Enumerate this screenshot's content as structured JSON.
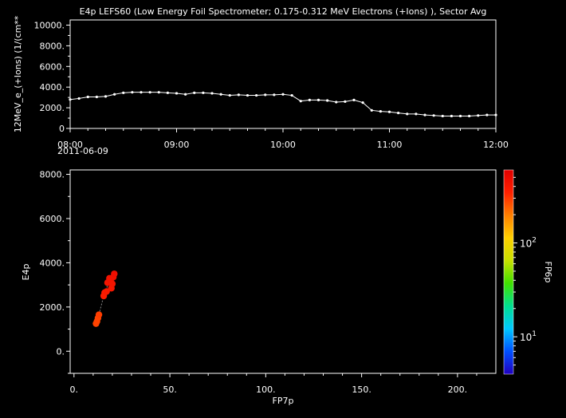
{
  "chart_data": [
    {
      "type": "line",
      "title": "E4p LEFS60 (Low Energy Foil Spectrometer; 0.175-0.312 MeV Electrons (+Ions) ), Sector Avg",
      "ylabel": "12MeV_e_(+Ions) (1/(cm**",
      "xlabel": "",
      "x_start_label": "08:00",
      "date_label": "2011-06-09",
      "xlim": [
        "08:00",
        "12:00"
      ],
      "ylim": [
        0,
        10500
      ],
      "x_ticks": [
        "08:00",
        "09:00",
        "10:00",
        "11:00",
        "12:00"
      ],
      "y_ticks": [
        "0",
        "2000.",
        "4000.",
        "6000.",
        "8000.",
        "10000."
      ],
      "grid": false,
      "line_color": "#ffffff",
      "series": [
        {
          "x": [
            "08:00",
            "08:05",
            "08:10",
            "08:15",
            "08:20",
            "08:25",
            "08:30",
            "08:35",
            "08:40",
            "08:45",
            "08:50",
            "08:55",
            "09:00",
            "09:05",
            "09:10",
            "09:15",
            "09:20",
            "09:25",
            "09:30",
            "09:35",
            "09:40",
            "09:45",
            "09:50",
            "09:55",
            "10:00",
            "10:05",
            "10:10",
            "10:15",
            "10:20",
            "10:25",
            "10:30",
            "10:35",
            "10:40",
            "10:45",
            "10:50",
            "10:55",
            "11:00",
            "11:05",
            "11:10",
            "11:15",
            "11:20",
            "11:25",
            "11:30",
            "11:35",
            "11:40",
            "11:45",
            "11:50",
            "11:55",
            "12:00"
          ],
          "values": [
            2800,
            2900,
            3050,
            3050,
            3100,
            3300,
            3450,
            3500,
            3500,
            3500,
            3500,
            3450,
            3400,
            3300,
            3450,
            3450,
            3400,
            3300,
            3200,
            3250,
            3200,
            3200,
            3250,
            3250,
            3300,
            3200,
            2650,
            2750,
            2750,
            2700,
            2550,
            2600,
            2750,
            2500,
            1750,
            1650,
            1600,
            1500,
            1400,
            1400,
            1300,
            1250,
            1200,
            1200,
            1200,
            1200,
            1250,
            1300,
            1300
          ]
        }
      ]
    },
    {
      "type": "scatter",
      "title": "",
      "xlabel": "FP7p",
      "ylabel": "E4p",
      "xlim": [
        -2,
        220
      ],
      "ylim": [
        -1000,
        8200
      ],
      "x_ticks": [
        "0.",
        "50.",
        "100.",
        "150.",
        "200."
      ],
      "y_ticks": [
        "0.",
        "2000.",
        "4000.",
        "6000.",
        "8000."
      ],
      "grid": false,
      "colorbar": {
        "label": "FP6p",
        "scale": "log",
        "range": [
          4,
          600
        ],
        "ticks": [
          {
            "label": "10",
            "exponent": "1",
            "value": 10
          },
          {
            "label": "10",
            "exponent": "2",
            "value": 100
          }
        ],
        "colors": [
          "#2000c0",
          "#0050ff",
          "#00c8ff",
          "#00e090",
          "#40e000",
          "#c8e000",
          "#ffd000",
          "#ff8000",
          "#ff2000",
          "#e00000"
        ]
      },
      "points": [
        {
          "x": 11.5,
          "y": 1250,
          "c": 280
        },
        {
          "x": 12,
          "y": 1350,
          "c": 280
        },
        {
          "x": 12.5,
          "y": 1500,
          "c": 280
        },
        {
          "x": 13,
          "y": 1650,
          "c": 290
        },
        {
          "x": 15.5,
          "y": 2500,
          "c": 370
        },
        {
          "x": 16,
          "y": 2650,
          "c": 370
        },
        {
          "x": 17,
          "y": 2700,
          "c": 380
        },
        {
          "x": 17.5,
          "y": 3100,
          "c": 420
        },
        {
          "x": 18.5,
          "y": 3300,
          "c": 440
        },
        {
          "x": 19,
          "y": 3200,
          "c": 430
        },
        {
          "x": 19.5,
          "y": 2850,
          "c": 400
        },
        {
          "x": 20,
          "y": 3050,
          "c": 420
        },
        {
          "x": 20.5,
          "y": 3350,
          "c": 450
        },
        {
          "x": 21,
          "y": 3500,
          "c": 470
        }
      ]
    }
  ]
}
